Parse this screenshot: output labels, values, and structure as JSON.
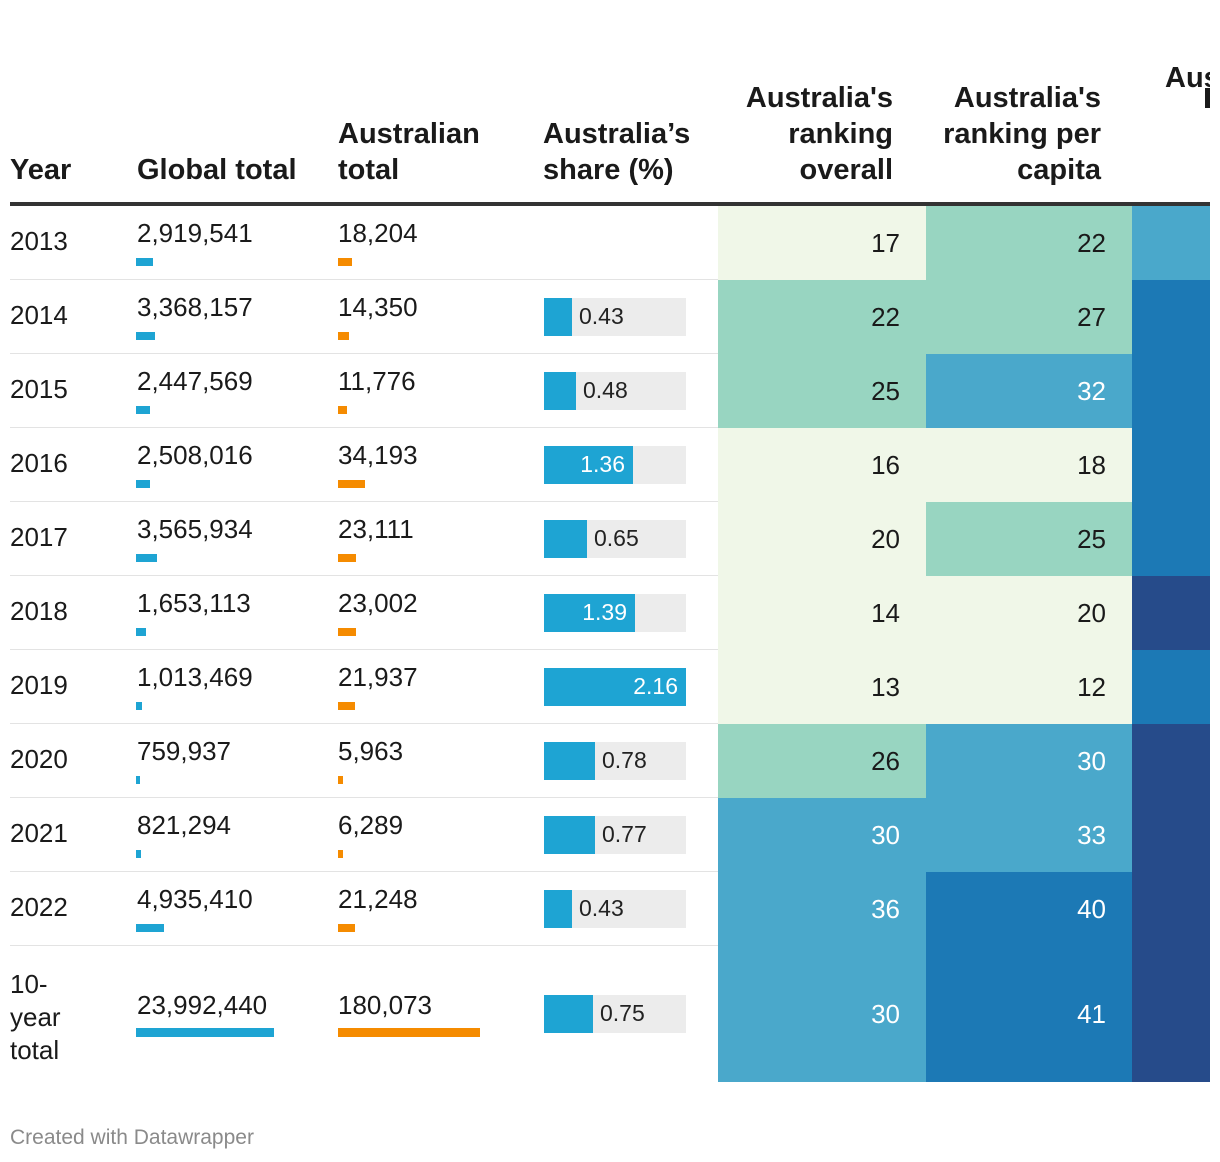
{
  "headers": {
    "year": "Year",
    "global": "Global total",
    "australian": "Australian total",
    "share": "Australia’s share (%)",
    "rank_overall": "Australia's ranking overall",
    "rank_capita": "Australia's ranking per capita",
    "third_partial": "Aus"
  },
  "chart_data": {
    "type": "table",
    "columns": [
      "Year",
      "Global total",
      "Australian total",
      "Australia’s share (%)",
      "Australia's ranking overall",
      "Australia's ranking per capita"
    ],
    "global_max": 23992440,
    "australian_max": 180073,
    "share_max": 2.16,
    "rows": [
      {
        "year": "2013",
        "global": "2,919,541",
        "global_value": 2919541,
        "australian": "18,204",
        "australian_value": 18204,
        "share": "",
        "share_value": null,
        "rank_overall": "17",
        "rank_capita": "22"
      },
      {
        "year": "2014",
        "global": "3,368,157",
        "global_value": 3368157,
        "australian": "14,350",
        "australian_value": 14350,
        "share": "0.43",
        "share_value": 0.43,
        "rank_overall": "22",
        "rank_capita": "27"
      },
      {
        "year": "2015",
        "global": "2,447,569",
        "global_value": 2447569,
        "australian": "11,776",
        "australian_value": 11776,
        "share": "0.48",
        "share_value": 0.48,
        "rank_overall": "25",
        "rank_capita": "32"
      },
      {
        "year": "2016",
        "global": "2,508,016",
        "global_value": 2508016,
        "australian": "34,193",
        "australian_value": 34193,
        "share": "1.36",
        "share_value": 1.36,
        "rank_overall": "16",
        "rank_capita": "18"
      },
      {
        "year": "2017",
        "global": "3,565,934",
        "global_value": 3565934,
        "australian": "23,111",
        "australian_value": 23111,
        "share": "0.65",
        "share_value": 0.65,
        "rank_overall": "20",
        "rank_capita": "25"
      },
      {
        "year": "2018",
        "global": "1,653,113",
        "global_value": 1653113,
        "australian": "23,002",
        "australian_value": 23002,
        "share": "1.39",
        "share_value": 1.39,
        "rank_overall": "14",
        "rank_capita": "20"
      },
      {
        "year": "2019",
        "global": "1,013,469",
        "global_value": 1013469,
        "australian": "21,937",
        "australian_value": 21937,
        "share": "2.16",
        "share_value": 2.16,
        "rank_overall": "13",
        "rank_capita": "12"
      },
      {
        "year": "2020",
        "global": "759,937",
        "global_value": 759937,
        "australian": "5,963",
        "australian_value": 5963,
        "share": "0.78",
        "share_value": 0.78,
        "rank_overall": "26",
        "rank_capita": "30"
      },
      {
        "year": "2021",
        "global": "821,294",
        "global_value": 821294,
        "australian": "6,289",
        "australian_value": 6289,
        "share": "0.77",
        "share_value": 0.77,
        "rank_overall": "30",
        "rank_capita": "33"
      },
      {
        "year": "2022",
        "global": "4,935,410",
        "global_value": 4935410,
        "australian": "21,248",
        "australian_value": 21248,
        "share": "0.43",
        "share_value": 0.43,
        "rank_overall": "36",
        "rank_capita": "40"
      },
      {
        "year": "10-year total",
        "global": "23,992,440",
        "global_value": 23992440,
        "australian": "180,073",
        "australian_value": 180073,
        "share": "0.75",
        "share_value": 0.75,
        "rank_overall": "30",
        "rank_capita": "41",
        "total": true
      }
    ],
    "third_column_colors": [
      "#4aa8cb",
      "#1c79b5",
      "#1c79b5",
      "#1c79b5",
      "#1c79b5",
      "#264b8a",
      "#1c79b5",
      "#264b8a",
      "#264b8a",
      "#264b8a",
      "#264b8a"
    ]
  },
  "footer": {
    "credit": "Created with Datawrapper"
  }
}
